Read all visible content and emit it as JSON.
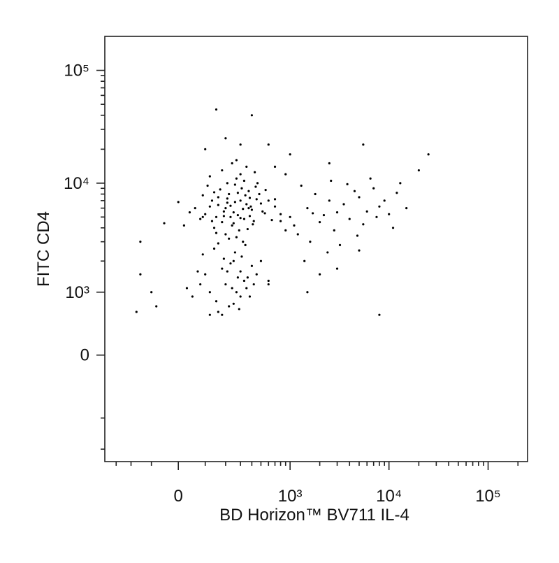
{
  "chart_data": {
    "type": "scatter",
    "x_label": "BD Horizon™ BV711 IL-4",
    "y_label": "FITC CD4",
    "xscale": "biexponential",
    "yscale": "biexponential",
    "xlim": [
      -400,
      250000
    ],
    "ylim": [
      -2600,
      200000
    ],
    "xticks": [
      0,
      {
        "value": 1000,
        "label": "10³"
      },
      {
        "value": 10000,
        "label": "10⁴"
      },
      {
        "value": 100000,
        "label": "10⁵"
      }
    ],
    "yticks": [
      0,
      {
        "value": 1000,
        "label": "10³"
      },
      {
        "value": 10000,
        "label": "10⁴"
      },
      {
        "value": 100000,
        "label": "10⁵"
      }
    ],
    "xminorticks": [
      -300,
      -200,
      -100,
      100,
      200,
      300,
      400,
      500,
      600,
      700,
      800,
      900,
      2000,
      3000,
      4000,
      5000,
      6000,
      7000,
      8000,
      9000,
      20000,
      30000,
      40000,
      50000,
      60000,
      70000,
      80000,
      90000,
      200000
    ],
    "yminorticks": [
      -2000,
      -1000,
      2000,
      3000,
      4000,
      5000,
      6000,
      7000,
      8000,
      9000,
      20000,
      30000,
      40000,
      50000,
      60000,
      70000,
      80000,
      90000
    ],
    "grid": false,
    "color": "#000000",
    "x": [
      150,
      200,
      250,
      300,
      180,
      220,
      280,
      350,
      120,
      400,
      160,
      240,
      310,
      260,
      190,
      330,
      450,
      140,
      210,
      370,
      100,
      290,
      230,
      420,
      170,
      320,
      500,
      130,
      270,
      380,
      80,
      200,
      340,
      250,
      440,
      160,
      300,
      550,
      110,
      360,
      60,
      210,
      390,
      270,
      480,
      150,
      330,
      230,
      600,
      90,
      40,
      260,
      180,
      410,
      300,
      520,
      140,
      350,
      220,
      700,
      20,
      120,
      460,
      280,
      190,
      650,
      240,
      380,
      160,
      800,
      0,
      320,
      90,
      430,
      210,
      560,
      130,
      270,
      370,
      -50,
      100,
      200,
      300,
      150,
      250,
      350,
      180,
      280,
      400,
      120,
      220,
      330,
      80,
      260,
      160,
      380,
      210,
      310,
      140,
      450,
      50,
      240,
      290,
      190,
      420,
      70,
      340,
      120,
      270,
      500,
      -80,
      30,
      230,
      360,
      180,
      -100,
      300,
      90,
      250,
      600,
      1000,
      1500,
      2000,
      2500,
      3000,
      1200,
      1800,
      2200,
      3500,
      4000,
      5000,
      6000,
      7000,
      8000,
      1100,
      1600,
      2800,
      4500,
      5500,
      9000,
      10000,
      12000,
      15000,
      700,
      900,
      1300,
      2600,
      3200,
      6500,
      11000,
      800,
      1700,
      2400,
      3800,
      4800,
      7500,
      13000,
      20000,
      1400,
      3000,
      600,
      2000,
      5000,
      1500,
      900,
      2500,
      8000,
      25000,
      5500,
      700,
      150,
      400,
      200,
      600,
      100,
      -150,
      -150,
      -170,
      1000,
      300
    ],
    "values": [
      5000,
      6000,
      5500,
      7000,
      4500,
      8000,
      5200,
      6500,
      6200,
      5800,
      7500,
      4200,
      9000,
      6800,
      5600,
      4800,
      7200,
      4000,
      10000,
      8500,
      5300,
      3800,
      6300,
      4600,
      8800,
      5900,
      6600,
      7000,
      11000,
      5100,
      4800,
      3500,
      7800,
      4400,
      9300,
      6400,
      12000,
      5400,
      9500,
      3900,
      6000,
      7300,
      6200,
      3300,
      8000,
      3600,
      10500,
      5000,
      7000,
      7800,
      5500,
      9700,
      13000,
      4300,
      4900,
      5600,
      8300,
      14000,
      3200,
      6200,
      4200,
      11500,
      10000,
      8200,
      5100,
      4700,
      15000,
      7400,
      2900,
      5300,
      6800,
      3000,
      5000,
      12500,
      6700,
      8700,
      4600,
      16000,
      6000,
      4400,
      1500,
      1200,
      900,
      800,
      2000,
      1100,
      1700,
      1400,
      1800,
      1000,
      700,
      1300,
      1200,
      2400,
      600,
      900,
      1600,
      2200,
      2600,
      1500,
      900,
      1100,
      650,
      2100,
      1200,
      1600,
      2800,
      550,
      1000,
      2000,
      700,
      1100,
      1900,
      1400,
      550,
      1000,
      1600,
      2300,
      750,
      1300,
      5000,
      6000,
      4500,
      7000,
      5500,
      3500,
      8000,
      5200,
      6500,
      4800,
      7500,
      5600,
      9000,
      6200,
      4200,
      3000,
      3800,
      8500,
      4300,
      7000,
      5300,
      8200,
      6000,
      7200,
      3800,
      9500,
      10500,
      2800,
      11000,
      4000,
      4600,
      5400,
      2400,
      9800,
      3400,
      5000,
      10000,
      13000,
      2000,
      1700,
      1200,
      1500,
      2500,
      1000,
      12000,
      15000,
      550,
      18000,
      22000,
      14000,
      45000,
      40000,
      25000,
      22000,
      20000,
      3000,
      1500,
      600,
      18000,
      22000
    ]
  }
}
